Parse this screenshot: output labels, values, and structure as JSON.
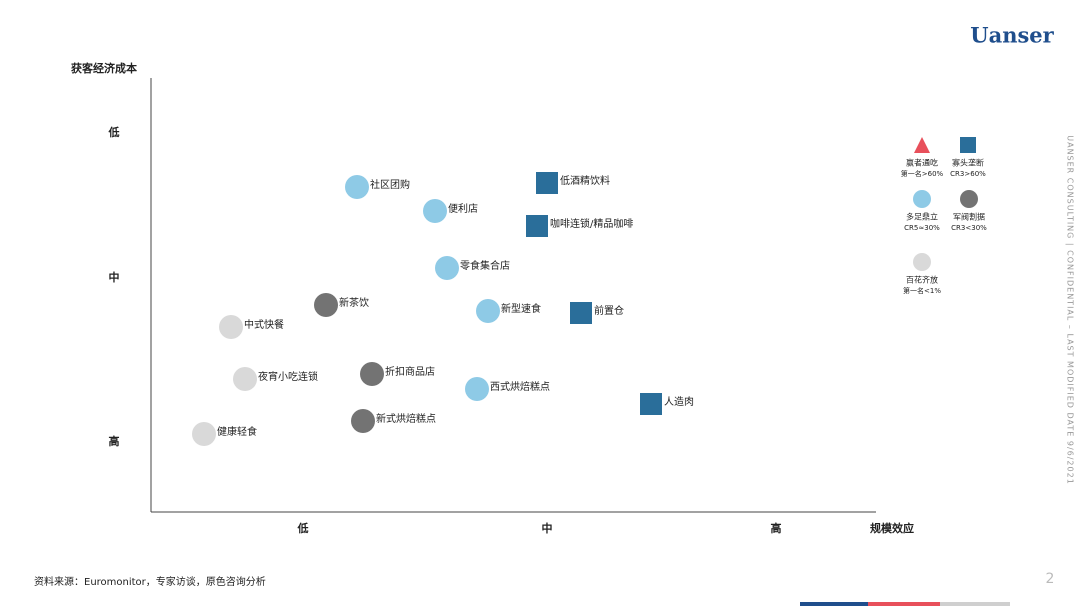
{
  "brand": "Uanser",
  "y_axis": {
    "title": "获客经济成本",
    "labels": [
      "低",
      "中",
      "高"
    ]
  },
  "x_axis": {
    "title": "规模效应",
    "labels": [
      "低",
      "中",
      "高"
    ]
  },
  "legend": [
    {
      "label": "赢者通吃",
      "note": "第一名>60%",
      "shape": "triangle",
      "color": "#e8505b"
    },
    {
      "label": "寡头垄断",
      "note": "CR3>60%",
      "shape": "square",
      "color": "#2a6e9a"
    },
    {
      "label": "多足鼎立",
      "note": "CR5≈30%",
      "shape": "circle",
      "color": "#8ecae6"
    },
    {
      "label": "军阀割据",
      "note": "CR3<30%",
      "shape": "circle",
      "color": "#737373"
    },
    {
      "label": "百花齐放",
      "note": "第一名<1%",
      "shape": "circle",
      "color": "#d9d9d9"
    }
  ],
  "items": [
    {
      "label": "社区团购",
      "kind": "多足鼎立"
    },
    {
      "label": "低酒精饮料",
      "kind": "寡头垄断"
    },
    {
      "label": "便利店",
      "kind": "多足鼎立"
    },
    {
      "label": "咖啡连锁/精品咖啡",
      "kind": "寡头垄断"
    },
    {
      "label": "零食集合店",
      "kind": "多足鼎立"
    },
    {
      "label": "新茶饮",
      "kind": "军阀割据"
    },
    {
      "label": "新型速食",
      "kind": "多足鼎立"
    },
    {
      "label": "前置仓",
      "kind": "寡头垄断"
    },
    {
      "label": "中式快餐",
      "kind": "百花齐放"
    },
    {
      "label": "夜宵小吃连锁",
      "kind": "百花齐放"
    },
    {
      "label": "折扣商品店",
      "kind": "军阀割据"
    },
    {
      "label": "西式烘焙糕点",
      "kind": "多足鼎立"
    },
    {
      "label": "人造肉",
      "kind": "寡头垄断"
    },
    {
      "label": "新式烘焙糕点",
      "kind": "军阀割据"
    },
    {
      "label": "健康轻食",
      "kind": "百花齐放"
    }
  ],
  "footer": {
    "source": "资料来源：Euromonitor，专家访谈，原色咨询分析",
    "page": "2"
  },
  "side_text": "UANSER CONSULTING | CONFIDENTIAL – LAST MODIFIED DATE 9/6/2021"
}
